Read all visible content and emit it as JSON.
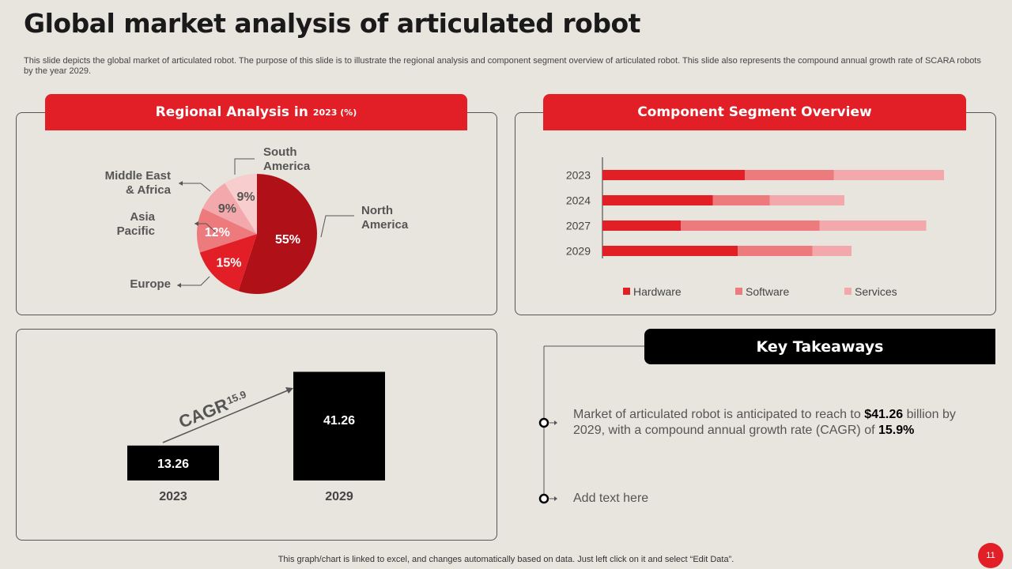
{
  "page": {
    "title": "Global market analysis of articulated robot",
    "subtitle": "This slide depicts the global market of articulated robot. The purpose of this slide is to illustrate the regional analysis and component segment overview of articulated robot. This slide also represents the compound annual growth rate of SCARA robots by the year 2029.",
    "footer": "This graph/chart is linked to excel,  and changes automatically based on data. Just left click on it and select “Edit Data”.",
    "page_number": "11"
  },
  "regional": {
    "header": "Regional Analysis in",
    "header_small": "2023 (%)"
  },
  "component": {
    "header": "Component Segment Overview"
  },
  "takeaways": {
    "header": "Key Takeaways",
    "item1_a": "Market of articulated robot is anticipated to reach to ",
    "item1_b": "$41.26",
    "item1_c": " billion by 2029, with a compound annual growth rate (CAGR) of ",
    "item1_d": "15.9%",
    "item2": "Add text here"
  },
  "colors": {
    "red": "#e21f26",
    "dark_red": "#b01018",
    "mid_red": "#ed7a7d",
    "light_red": "#f3a9ac",
    "pale_red": "#f8cdce",
    "black": "#000000"
  },
  "chart_data": [
    {
      "type": "pie",
      "title": "Regional Analysis in 2023 (%)",
      "slices": [
        {
          "label": "North America",
          "value": 55,
          "display": "55%",
          "color": "#b01018",
          "label_lines": [
            "North",
            "America"
          ]
        },
        {
          "label": "Europe",
          "value": 15,
          "display": "15%",
          "color": "#e21f26",
          "label_lines": [
            "Europe"
          ]
        },
        {
          "label": "Asia Pacific",
          "value": 12,
          "display": "12%",
          "color": "#ed7a7d",
          "label_lines": [
            "Asia",
            "Pacific"
          ]
        },
        {
          "label": "Middle East & Africa",
          "value": 9,
          "display": "9%",
          "color": "#f3a9ac",
          "label_lines": [
            "Middle East",
            "& Africa"
          ]
        },
        {
          "label": "South America",
          "value": 9,
          "display": "9%",
          "color": "#f8cdce",
          "label_lines": [
            "South",
            "America"
          ]
        }
      ]
    },
    {
      "type": "bar",
      "orientation": "horizontal",
      "stacked": true,
      "title": "Component Segment Overview",
      "categories": [
        "2023",
        "2024",
        "2027",
        "2029"
      ],
      "series": [
        {
          "name": "Hardware",
          "values": [
            40,
            31,
            22,
            38
          ],
          "color": "#e21f26"
        },
        {
          "name": "Software",
          "values": [
            25,
            16,
            39,
            21
          ],
          "color": "#ed7a7d"
        },
        {
          "name": "Services",
          "values": [
            31,
            21,
            30,
            11
          ],
          "color": "#f3a9ac"
        }
      ],
      "xlim": [
        0,
        100
      ],
      "legend": "bottom"
    },
    {
      "type": "bar",
      "title": "CAGR",
      "categories": [
        "2023",
        "2029"
      ],
      "values": [
        13.26,
        41.26
      ],
      "value_labels": [
        "13.26",
        "41.26"
      ],
      "annotation": {
        "label": "CAGR",
        "value": "15.9"
      },
      "ylim": [
        0,
        45
      ]
    }
  ]
}
